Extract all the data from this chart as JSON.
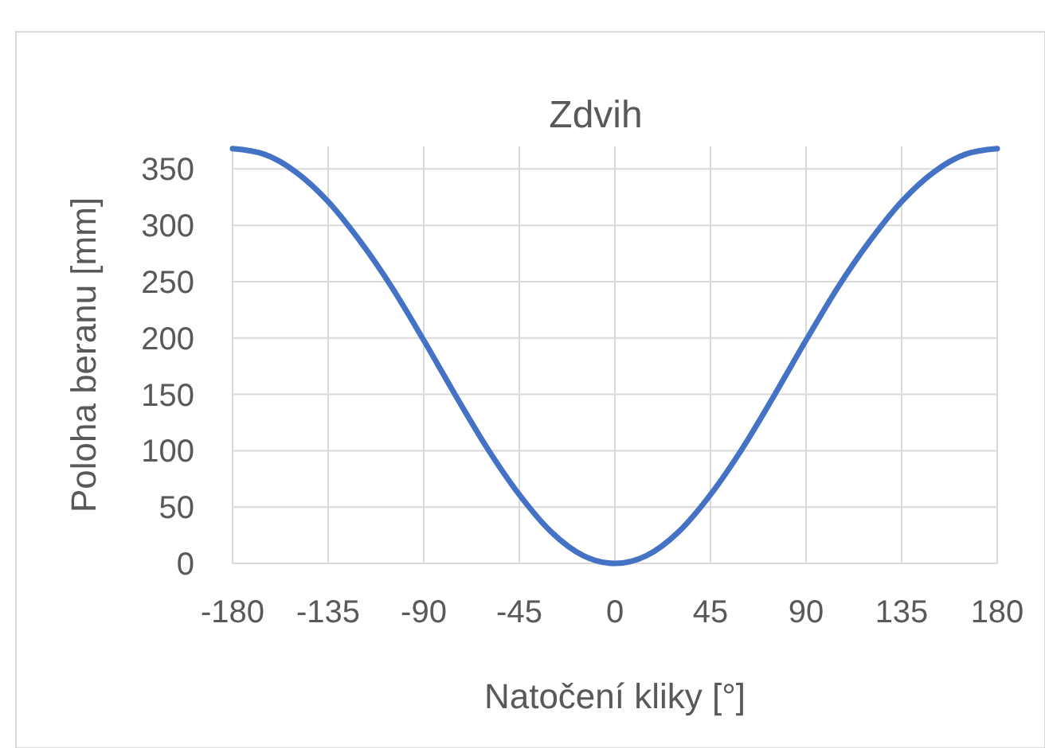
{
  "chart_data": {
    "type": "line",
    "title": "Zdvih",
    "xlabel": "Natočení kliky [°]",
    "ylabel": "Poloha beranu [mm]",
    "x": [
      -180,
      -165,
      -150,
      -135,
      -120,
      -105,
      -90,
      -75,
      -60,
      -45,
      -30,
      -15,
      0,
      15,
      30,
      45,
      60,
      75,
      90,
      105,
      120,
      135,
      150,
      165,
      180
    ],
    "series": [
      {
        "color": "#4472c4",
        "values": [
          368,
          363,
          347,
          321,
          286,
          245,
          198,
          149,
          102,
          61,
          28,
          7,
          0,
          7,
          28,
          61,
          102,
          149,
          198,
          245,
          286,
          321,
          347,
          363,
          368
        ]
      }
    ],
    "xlim": [
      -180,
      180
    ],
    "xticks": [
      -180,
      -135,
      -90,
      -45,
      0,
      45,
      90,
      135,
      180
    ],
    "ylim": [
      0,
      370
    ],
    "yticks": [
      0,
      50,
      100,
      150,
      200,
      250,
      300,
      350
    ],
    "grid": true,
    "marker": "none",
    "line_style": "solid"
  }
}
